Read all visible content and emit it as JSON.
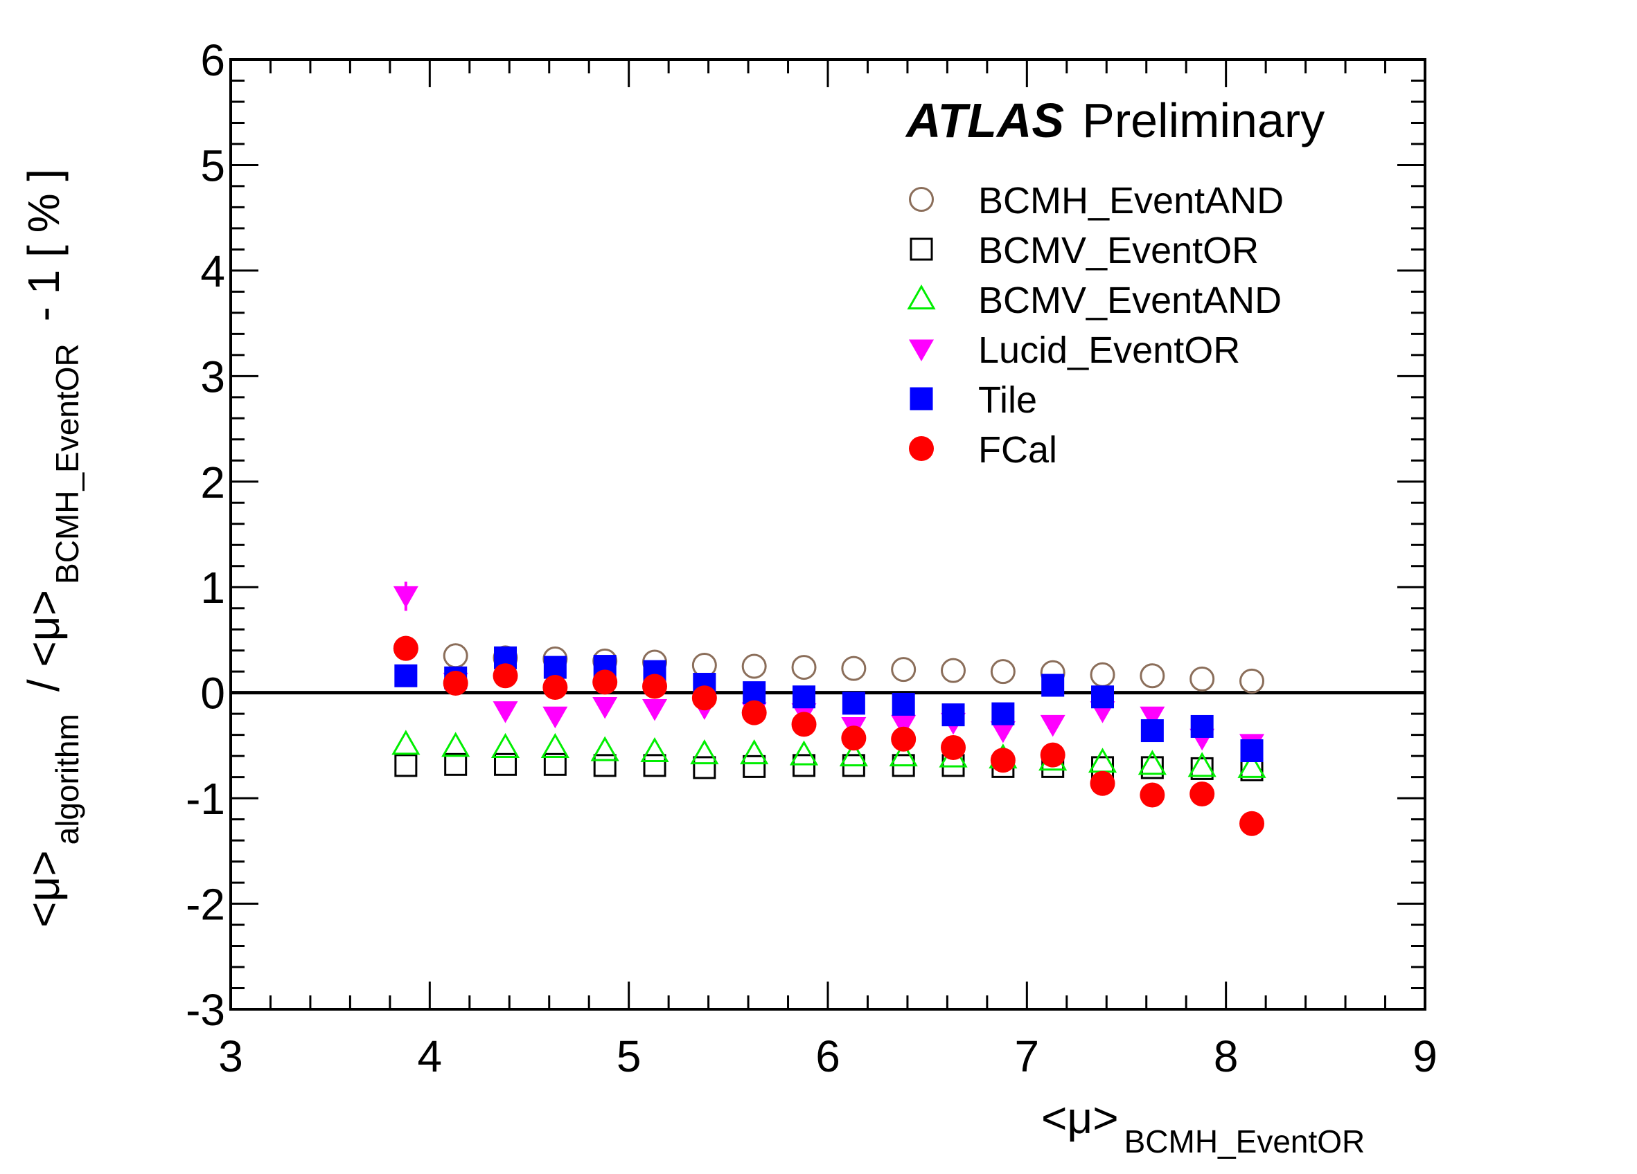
{
  "chart_data": {
    "type": "scatter",
    "xlabel": {
      "main": "<μ>",
      "sub": "BCMH_EventOR"
    },
    "ylabel": {
      "part1": "<μ>",
      "sub1": "algorithm",
      "part2": "/ <μ>",
      "sub2": "BCMH_EventOR",
      "part3": "- 1 [ % ]"
    },
    "xlim": [
      3,
      9
    ],
    "ylim": [
      -3,
      6
    ],
    "xticks": [
      "3",
      "4",
      "5",
      "6",
      "7",
      "8",
      "9"
    ],
    "yticks": [
      "-3",
      "-2",
      "-1",
      "0",
      "1",
      "2",
      "3",
      "4",
      "5",
      "6"
    ],
    "annotation": {
      "bold": "ATLAS",
      "normal": "Preliminary"
    },
    "legend_position": "top-right",
    "reference_line_y": 0,
    "x": [
      3.88,
      4.13,
      4.38,
      4.63,
      4.88,
      5.13,
      5.38,
      5.63,
      5.88,
      6.13,
      6.38,
      6.63,
      6.88,
      7.13,
      7.38,
      7.63,
      7.88,
      8.13
    ],
    "series": [
      {
        "name": "BCMH_EventAND",
        "marker": "circle-open",
        "color": "#8B6E5A",
        "values": [
          0.42,
          0.35,
          0.33,
          0.32,
          0.3,
          0.29,
          0.26,
          0.25,
          0.24,
          0.23,
          0.22,
          0.21,
          0.2,
          0.19,
          0.17,
          0.16,
          0.13,
          0.11
        ]
      },
      {
        "name": "BCMV_EventOR",
        "marker": "square-open",
        "color": "#000000",
        "values": [
          -0.69,
          -0.68,
          -0.68,
          -0.68,
          -0.69,
          -0.69,
          -0.71,
          -0.7,
          -0.69,
          -0.69,
          -0.69,
          -0.69,
          -0.7,
          -0.7,
          -0.71,
          -0.71,
          -0.72,
          -0.73
        ]
      },
      {
        "name": "BCMV_EventAND",
        "marker": "triangle-up-open",
        "color": "#00EE00",
        "values": [
          -0.49,
          -0.51,
          -0.52,
          -0.52,
          -0.55,
          -0.56,
          -0.58,
          -0.58,
          -0.59,
          -0.6,
          -0.6,
          -0.61,
          -0.62,
          -0.64,
          -0.66,
          -0.68,
          -0.7,
          -0.71
        ]
      },
      {
        "name": "Lucid_EventOR",
        "marker": "triangle-down-filled",
        "color": "#FF00FF",
        "values": [
          0.92,
          0.1,
          -0.17,
          -0.22,
          -0.13,
          -0.15,
          -0.14,
          -0.18,
          -0.19,
          -0.32,
          -0.3,
          -0.28,
          -0.36,
          -0.3,
          -0.17,
          -0.22,
          -0.43,
          -0.48
        ]
      },
      {
        "name": "Tile",
        "marker": "square-filled",
        "color": "#0000FF",
        "values": [
          0.16,
          0.14,
          0.33,
          0.24,
          0.25,
          0.2,
          0.08,
          0.0,
          -0.04,
          -0.1,
          -0.11,
          -0.21,
          -0.2,
          0.07,
          -0.04,
          -0.36,
          -0.32,
          -0.55
        ]
      },
      {
        "name": "FCal",
        "marker": "circle-filled",
        "color": "#FF0000",
        "values": [
          0.42,
          0.09,
          0.16,
          0.05,
          0.1,
          0.06,
          -0.05,
          -0.19,
          -0.3,
          -0.43,
          -0.44,
          -0.52,
          -0.64,
          -0.59,
          -0.86,
          -0.97,
          -0.96,
          -1.24
        ]
      }
    ]
  }
}
